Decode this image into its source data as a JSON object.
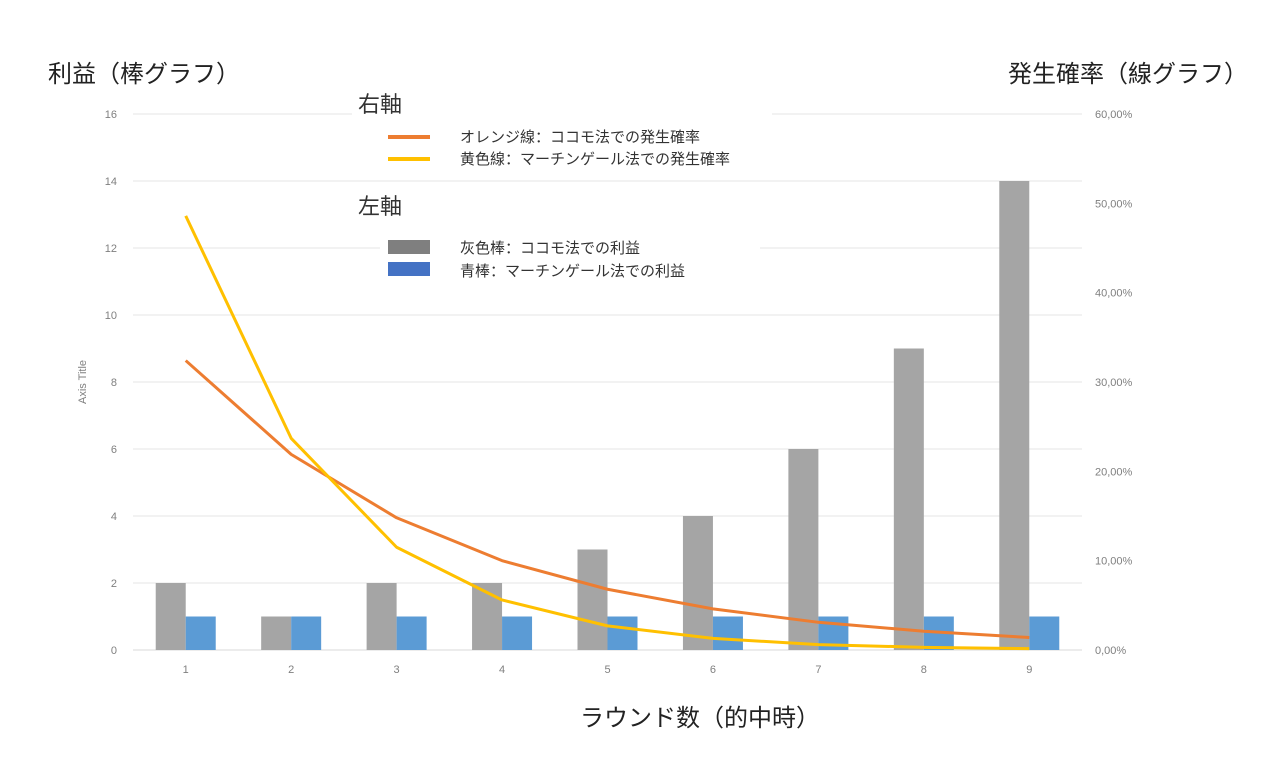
{
  "titles": {
    "left_title": "利益（棒グラフ）",
    "right_title": "発生確率（線グラフ）",
    "x_title": "ラウンド数（的中時）",
    "y_axis_title": "Axis Title"
  },
  "legend": {
    "right_axis_heading": "右軸",
    "left_axis_heading": "左軸",
    "entries": [
      {
        "label": "オレンジ線：ココモ法での発生確率",
        "color": "#ed7d31",
        "kind": "line"
      },
      {
        "label": "黄色線：マーチンゲール法での発生確率",
        "color": "#ffc000",
        "kind": "line"
      },
      {
        "label": "灰色棒：ココモ法での利益",
        "color": "#a5a5a5",
        "kind": "bar"
      },
      {
        "label": "青棒：マーチンゲール法での利益",
        "color": "#5b9bd5",
        "kind": "bar"
      }
    ]
  },
  "chart_data": {
    "type": "bar+line",
    "categories": [
      "1",
      "2",
      "3",
      "4",
      "5",
      "6",
      "7",
      "8",
      "9"
    ],
    "left_axis": {
      "range": [
        0,
        16
      ],
      "ticks": [
        "0",
        "2",
        "4",
        "6",
        "8",
        "10",
        "12",
        "14",
        "16"
      ]
    },
    "right_axis": {
      "range": [
        0,
        60
      ],
      "ticks": [
        "0,00%",
        "10,00%",
        "20,00%",
        "30,00%",
        "40,00%",
        "50,00%",
        "60,00%"
      ]
    },
    "grid": true,
    "bar_series": [
      {
        "name": "灰色棒：ココモ法での利益",
        "color": "#a5a5a5",
        "values": [
          2,
          1,
          2,
          2,
          3,
          4,
          6,
          9,
          14
        ]
      },
      {
        "name": "青棒：マーチンゲール法での利益",
        "color": "#5b9bd5",
        "values": [
          1,
          1,
          1,
          1,
          1,
          1,
          1,
          1,
          1
        ]
      }
    ],
    "line_series": [
      {
        "name": "オレンジ線：ココモ法での発生確率",
        "color": "#ed7d31",
        "values": [
          32.4,
          21.9,
          14.8,
          10.0,
          6.8,
          4.6,
          3.1,
          2.1,
          1.4
        ]
      },
      {
        "name": "黄色線：マーチンゲール法での発生確率",
        "color": "#ffc000",
        "values": [
          48.6,
          23.7,
          11.5,
          5.6,
          2.7,
          1.3,
          0.6,
          0.3,
          0.15
        ]
      }
    ]
  }
}
